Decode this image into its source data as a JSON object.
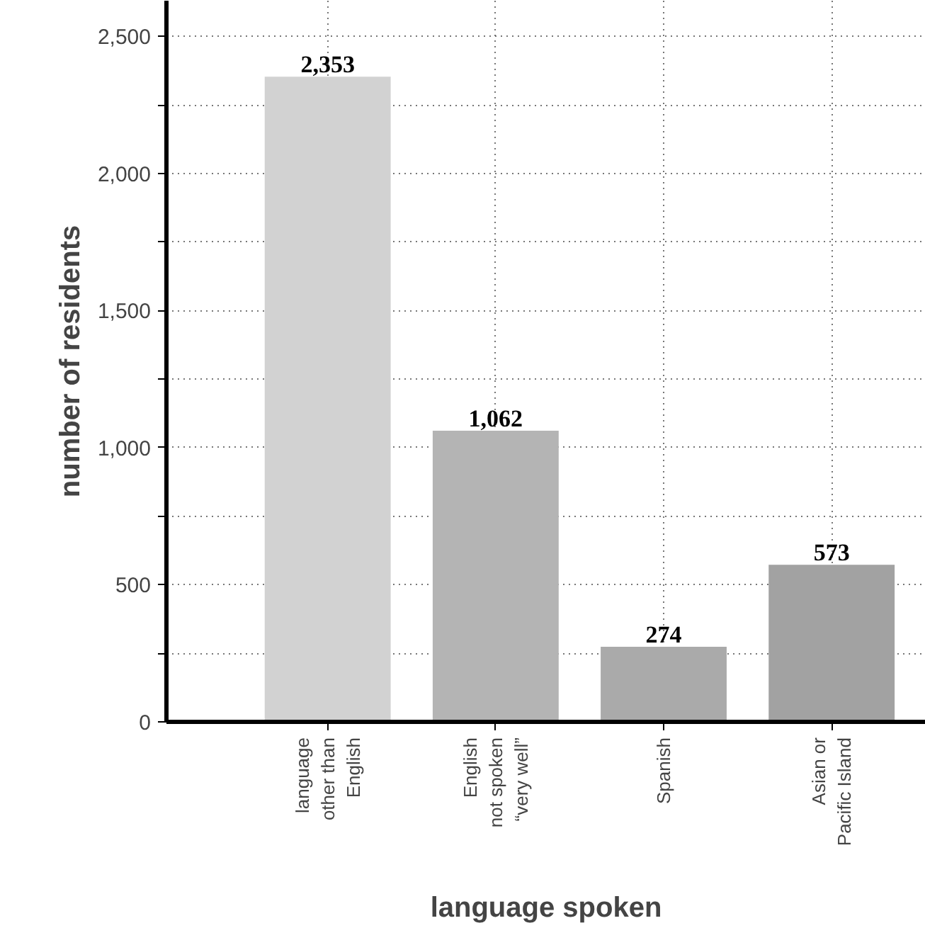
{
  "chart_data": {
    "type": "bar",
    "xlabel": "language spoken",
    "ylabel": "number of residents",
    "categories": [
      "language\nother than\nEnglish",
      "English\nnot spoken\n“very well”",
      "Spanish",
      "Asian or\nPacific Island"
    ],
    "values": [
      2353,
      1062,
      274,
      573
    ],
    "colors": [
      "#d2d2d2",
      "#b4b4b4",
      "#aaaaaa",
      "#a2a2a2"
    ],
    "ylim": [
      0,
      2630
    ],
    "yticks": [
      0,
      {
        "value": 250,
        "label": null
      },
      {
        "value": 500,
        "label": "500"
      },
      {
        "value": 750,
        "label": null
      },
      {
        "value": 1000,
        "label": "1,000"
      },
      {
        "value": 1250,
        "label": null
      },
      {
        "value": 1500,
        "label": "1,500"
      },
      {
        "value": 1750,
        "label": null
      },
      {
        "value": 2000,
        "label": "2,000"
      },
      {
        "value": 2250,
        "label": null
      },
      {
        "value": 2500,
        "label": "2,500"
      }
    ],
    "value_labels": [
      "2,353",
      "1,062",
      "274",
      "573"
    ],
    "grid": true
  }
}
